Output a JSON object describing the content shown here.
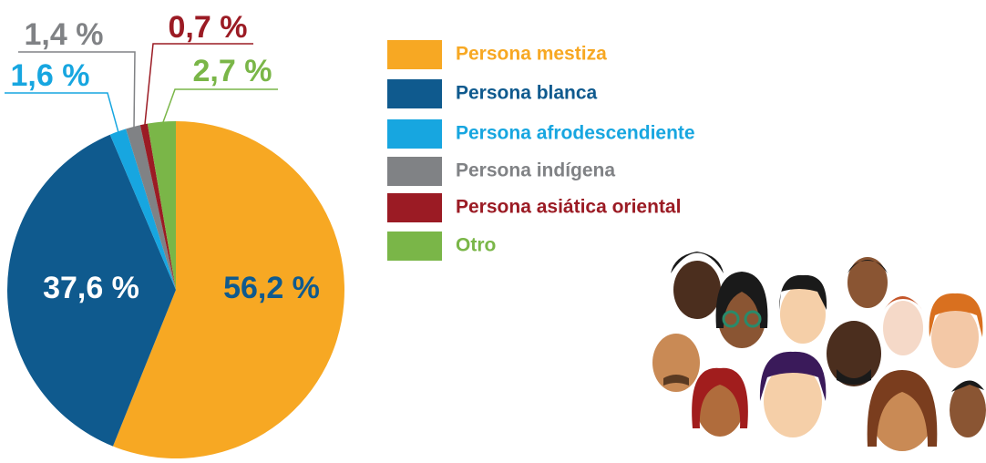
{
  "chart_data": {
    "type": "pie",
    "categories": [
      "Persona mestiza",
      "Persona blanca",
      "Persona afrodescendiente",
      "Persona indígena",
      "Persona asiática oriental",
      "Otro"
    ],
    "values": [
      56.2,
      37.6,
      1.6,
      1.4,
      0.7,
      2.7
    ],
    "value_labels": [
      "56,2 %",
      "37,6 %",
      "1,6 %",
      "1,4 %",
      "0,7 %",
      "2,7 %"
    ],
    "colors": [
      "#f7a823",
      "#0f5a8e",
      "#17a6e0",
      "#808285",
      "#9b1b24",
      "#7ab648"
    ]
  }
}
